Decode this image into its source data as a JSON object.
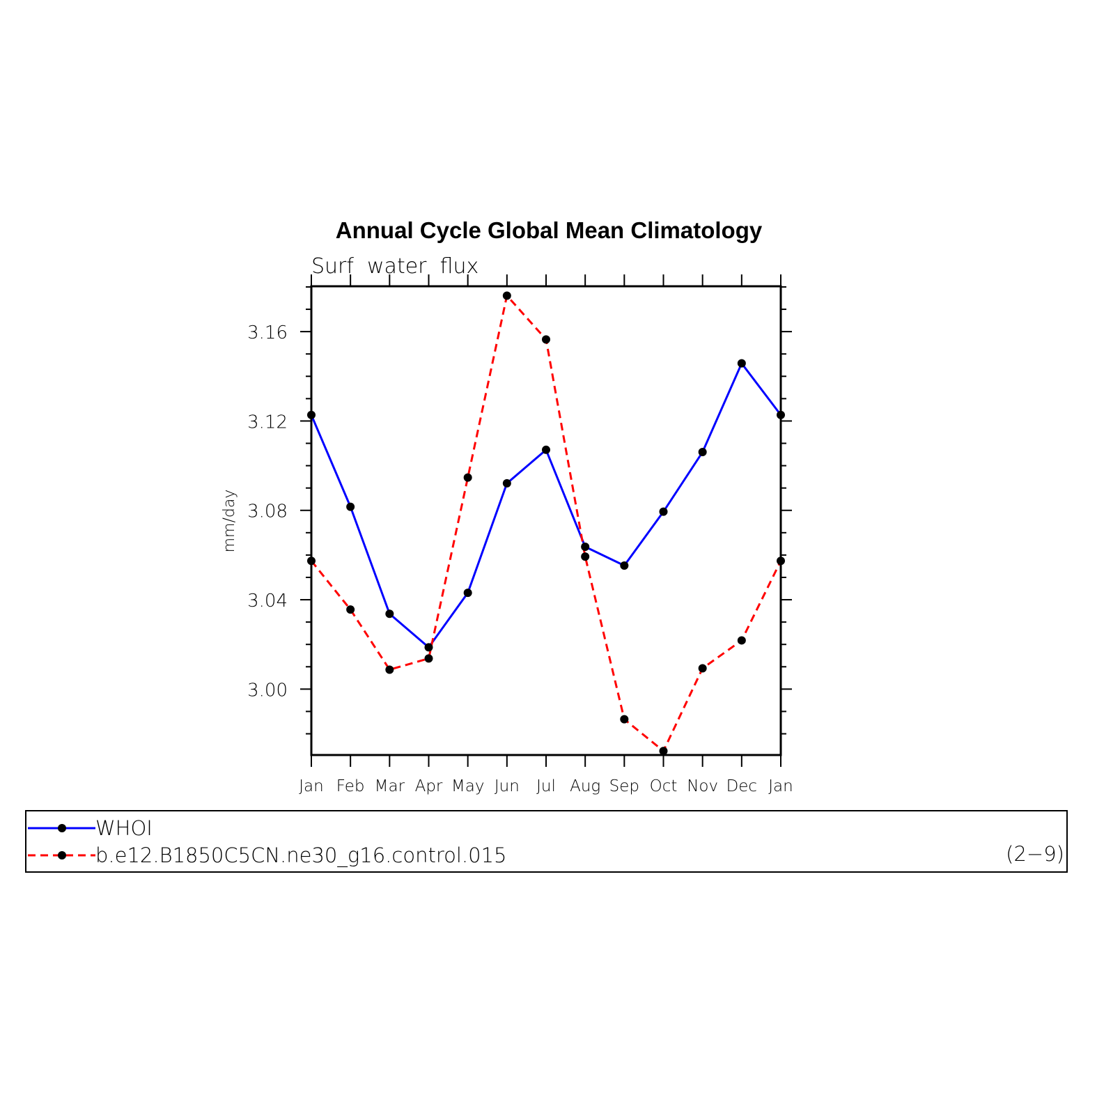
{
  "chart_data": {
    "type": "line",
    "title": "Annual Cycle Global Mean Climatology",
    "subtitle": "Surf  water  flux",
    "ylabel": "mm/day",
    "xlabel": "",
    "categories": [
      "Jan",
      "Feb",
      "Mar",
      "Apr",
      "May",
      "Jun",
      "Jul",
      "Aug",
      "Sep",
      "Oct",
      "Nov",
      "Dec",
      "Jan"
    ],
    "ylim": [
      2.9705,
      3.1803
    ],
    "yticks": [
      "3.00",
      "3.04",
      "3.08",
      "3.12",
      "3.16"
    ],
    "grid": false,
    "legend_position": "bottom",
    "series": [
      {
        "name": "WHOI",
        "color": "#0000ff",
        "dash": "solid",
        "values": [
          3.1227,
          3.0816,
          3.0337,
          3.0187,
          3.0431,
          3.0921,
          3.1071,
          3.0637,
          3.0553,
          3.0794,
          3.1061,
          3.1458,
          3.1227
        ]
      },
      {
        "name": "b.e12.B1850C5CN.ne30_g16.control.015",
        "color": "#ff0000",
        "dash": "dashed",
        "values": [
          3.0574,
          3.0356,
          3.0087,
          3.0137,
          3.0947,
          3.1761,
          3.1565,
          3.0593,
          2.9865,
          2.9723,
          3.0093,
          3.0218,
          3.0574
        ]
      }
    ],
    "annotation": "(2−9)"
  }
}
